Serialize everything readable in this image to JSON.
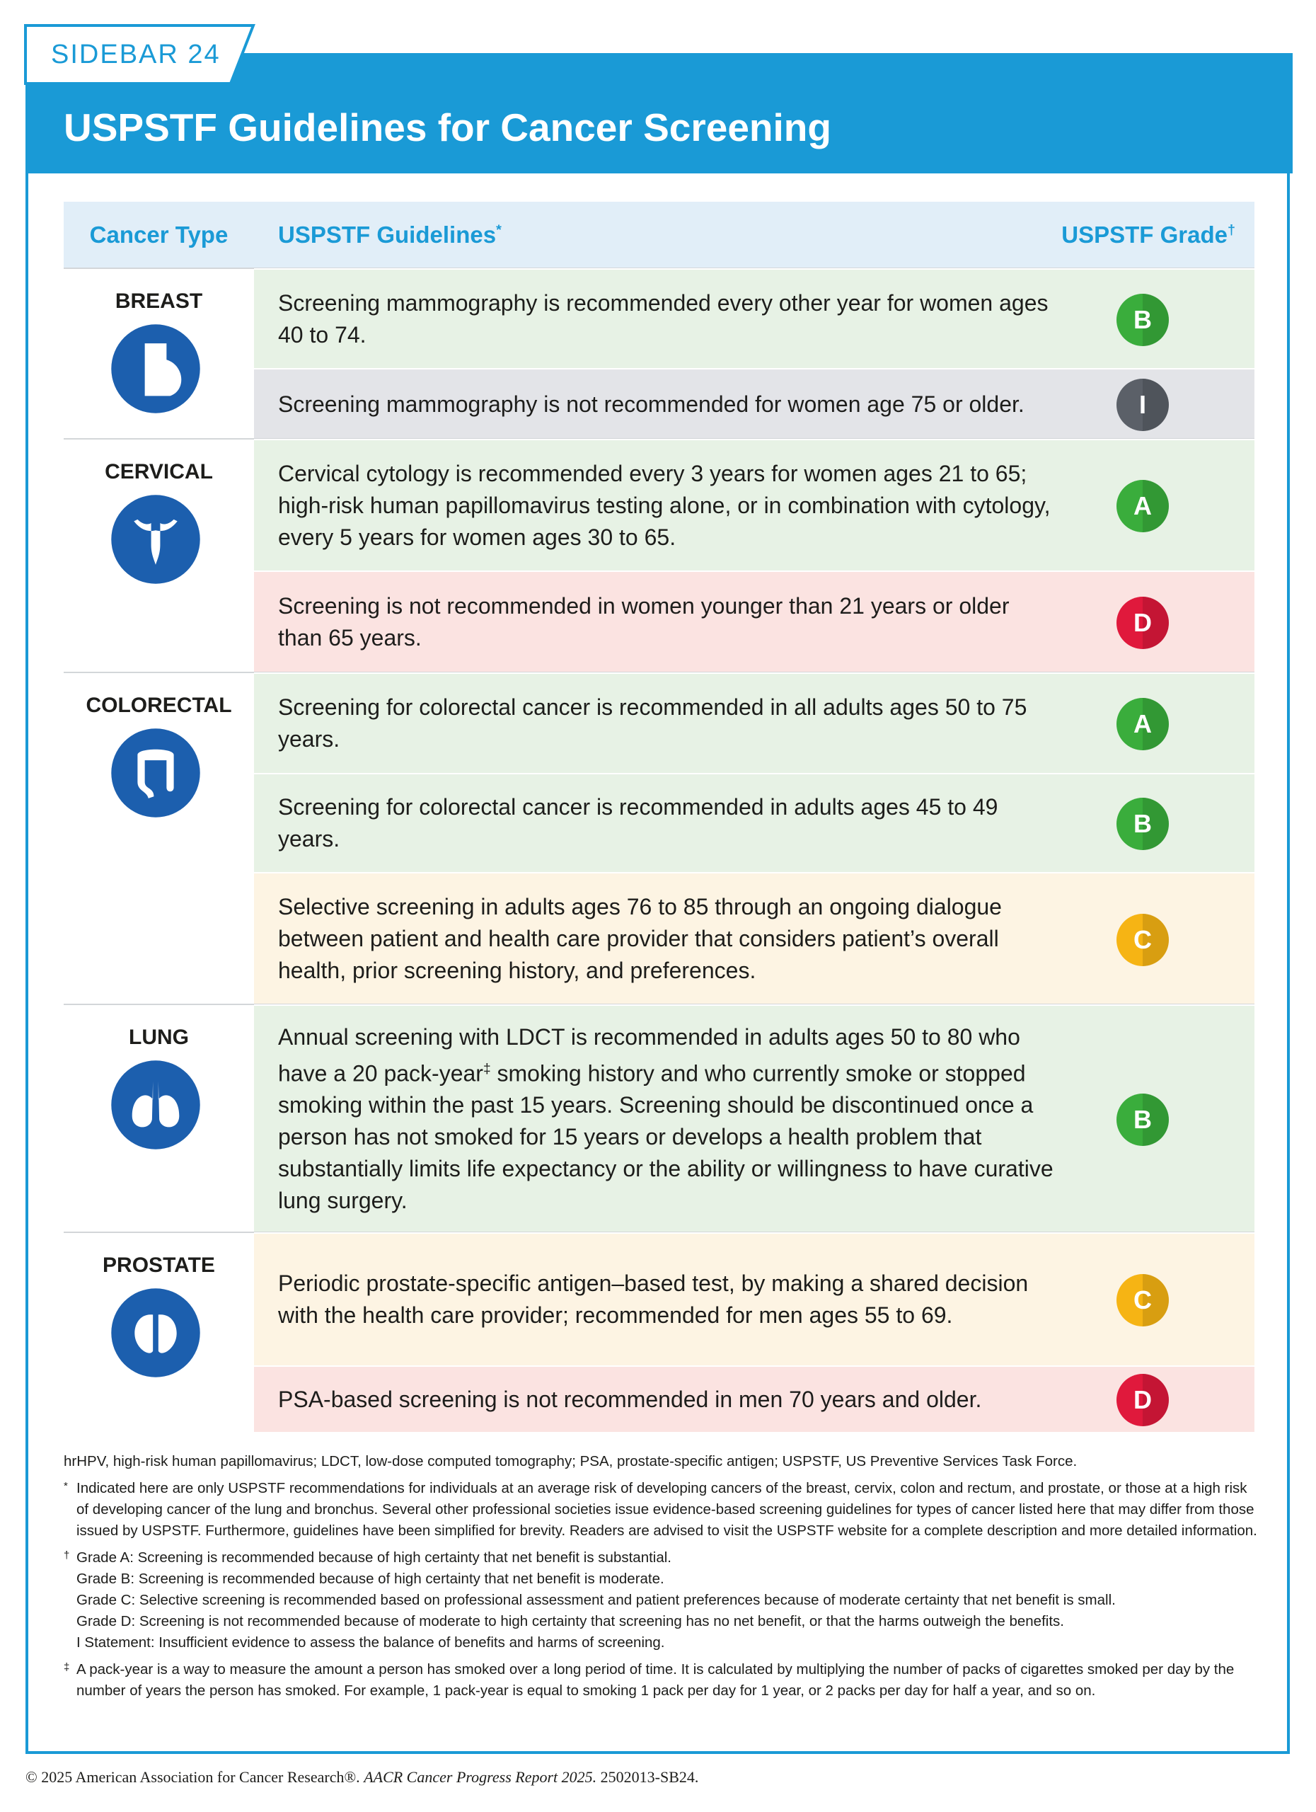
{
  "sidebar_label": "SIDEBAR 24",
  "title": "USPSTF Guidelines for Cancer Screening",
  "table": {
    "headers": {
      "cancer_type": "Cancer Type",
      "guidelines": {
        "text": "USPSTF Guidelines",
        "sup": "*"
      },
      "grade": {
        "text": "USPSTF Grade",
        "sup": "†"
      }
    },
    "groups": [
      {
        "name": "BREAST",
        "rows": [
          {
            "text": "Screening mammography is recommended every other year for women ages 40 to 74.",
            "grade": "B",
            "grade_color": "#3aad3c",
            "row_color": "#e7f2e5"
          },
          {
            "text": "Screening mammography is not recommended for women age 75 or older.",
            "grade": "I",
            "grade_color": "#5b6068",
            "row_color": "#e3e4e8"
          }
        ]
      },
      {
        "name": "CERVICAL",
        "rows": [
          {
            "text": "Cervical cytology is recommended every 3 years for women ages 21 to 65; high-risk human papillomavirus testing alone, or in combination with cytology, every 5 years for women ages 30 to 65.",
            "grade": "A",
            "grade_color": "#3aad3c",
            "row_color": "#e7f2e5"
          },
          {
            "text": "Screening is not recommended in women younger than 21 years or older than 65 years.",
            "grade": "D",
            "grade_color": "#e0193c",
            "row_color": "#fbe3e1"
          }
        ]
      },
      {
        "name": "COLORECTAL",
        "rows": [
          {
            "text": "Screening for colorectal cancer is recommended in all adults ages 50 to 75 years.",
            "grade": "A",
            "grade_color": "#3aad3c",
            "row_color": "#e7f2e5"
          },
          {
            "text": "Screening for colorectal cancer is recommended in adults ages 45 to 49 years.",
            "grade": "B",
            "grade_color": "#3aad3c",
            "row_color": "#e7f2e5"
          },
          {
            "text": "Selective screening in adults ages 76 to 85 through an ongoing dialogue between patient and health care provider that considers patient’s overall health, prior screening history, and preferences.",
            "grade": "C",
            "grade_color": "#f6b414",
            "row_color": "#fdf4e3"
          }
        ]
      },
      {
        "name": "LUNG",
        "rows": [
          {
            "text": "Annual screening with LDCT is recommended in adults ages 50 to 80 who have a 20 pack-year",
            "sup": "‡",
            "text_after": " smoking history and who currently smoke or stopped smoking within the past 15 years. Screening should be discontinued once a person has not smoked for 15 years or develops a health problem that substantially limits life expectancy or the ability or willingness to have curative lung surgery.",
            "grade": "B",
            "grade_color": "#3aad3c",
            "row_color": "#e7f2e5"
          }
        ]
      },
      {
        "name": "PROSTATE",
        "rows": [
          {
            "text": "Periodic prostate-specific antigen–based test, by making a shared decision with the health care provider; recommended for men ages 55 to 69.",
            "grade": "C",
            "grade_color": "#f6b414",
            "row_color": "#fdf4e3"
          },
          {
            "text": "PSA-based screening is not recommended in men 70 years and older.",
            "grade": "D",
            "grade_color": "#e0193c",
            "row_color": "#fbe3e1"
          }
        ]
      }
    ]
  },
  "abbreviations": "hrHPV, high-risk human papillomavirus; LDCT, low-dose computed tomography; PSA, prostate-specific antigen; USPSTF, US Preventive Services Task Force.",
  "footnotes": [
    {
      "symbol": "*",
      "lines": [
        "Indicated here are only USPSTF recommendations for individuals at an average risk of developing cancers of the breast, cervix, colon and rectum, and prostate, or those at a high risk of developing cancer of the lung and bronchus. Several other professional societies issue evidence-based screening guidelines for types of cancer listed here that may differ from those issued by USPSTF. Furthermore, guidelines have been simplified for brevity. Readers are advised to visit the USPSTF website for a complete description and more detailed information."
      ]
    },
    {
      "symbol": "†",
      "lines": [
        "Grade A: Screening is recommended because of high certainty that net benefit is substantial.",
        "Grade B: Screening is recommended because of high certainty that net benefit is moderate.",
        "Grade C: Selective screening is recommended based on professional assessment and patient preferences because of moderate certainty that net benefit is small.",
        "Grade D: Screening is not recommended because of moderate to high certainty that screening has no net benefit, or that the harms outweigh the benefits.",
        "I Statement: Insufficient evidence to assess the balance of benefits and harms of screening."
      ]
    },
    {
      "symbol": "‡",
      "lines": [
        "A pack-year is a way to measure the amount a person has smoked over a long period of time. It is calculated by multiplying the number of packs of cigarettes smoked per day by the number of years the person has smoked. For example, 1 pack-year is equal to smoking 1 pack per day for 1 year, or 2 packs per day for half a year, and so on."
      ]
    }
  ],
  "copyright": {
    "text": "© 2025 American Association for Cancer Research®.",
    "italic": "AACR Cancer Progress Report 2025.",
    "code": "2502013-SB24."
  }
}
